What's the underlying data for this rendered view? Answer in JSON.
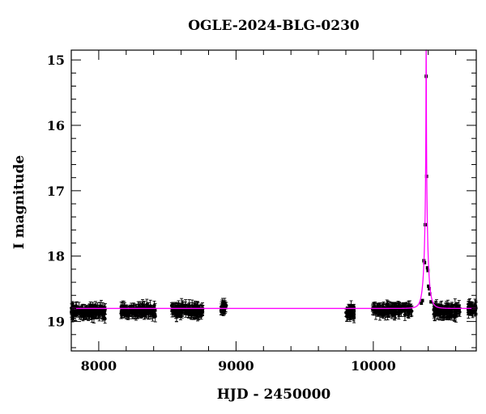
{
  "chart_data": {
    "type": "scatter",
    "title": "OGLE-2024-BLG-0230",
    "xlabel": "HJD - 2450000",
    "ylabel": "I magnitude",
    "xlim": [
      7800,
      10750
    ],
    "ylim": [
      19.45,
      14.85
    ],
    "y_inverted": true,
    "grid": false,
    "x_ticks": [
      "8000",
      "9000",
      "10000"
    ],
    "y_ticks": [
      "15",
      "16",
      "17",
      "18",
      "19"
    ],
    "colors": {
      "points": "#000000",
      "model": "#ff00ff"
    },
    "baseline_magnitude": 18.8,
    "model": {
      "type": "microlensing-fit",
      "t0": 10385,
      "tE": 28,
      "u0": 0.012,
      "baseline": 18.8
    },
    "season_groups": [
      {
        "x_range": [
          7800,
          8050
        ],
        "y_center": 18.85,
        "spread": 0.1
      },
      {
        "x_range": [
          8160,
          8420
        ],
        "y_center": 18.84,
        "spread": 0.09
      },
      {
        "x_range": [
          8530,
          8760
        ],
        "y_center": 18.83,
        "spread": 0.1
      },
      {
        "x_range": [
          8890,
          8930
        ],
        "y_center": 18.78,
        "spread": 0.07
      },
      {
        "x_range": [
          9800,
          9860
        ],
        "y_center": 18.85,
        "spread": 0.1
      },
      {
        "x_range": [
          9990,
          10280
        ],
        "y_center": 18.82,
        "spread": 0.08
      },
      {
        "x_range": [
          10440,
          10630
        ],
        "y_center": 18.84,
        "spread": 0.09
      },
      {
        "x_range": [
          10690,
          10750
        ],
        "y_center": 18.8,
        "spread": 0.07
      }
    ],
    "peak_points": [
      {
        "x": 10385,
        "y": 15.25
      },
      {
        "x": 10388,
        "y": 16.78
      },
      {
        "x": 10378,
        "y": 17.52
      },
      {
        "x": 10368,
        "y": 18.07
      },
      {
        "x": 10374,
        "y": 18.1
      },
      {
        "x": 10394,
        "y": 18.18
      },
      {
        "x": 10398,
        "y": 18.22
      },
      {
        "x": 10402,
        "y": 18.46
      },
      {
        "x": 10408,
        "y": 18.5
      },
      {
        "x": 10412,
        "y": 18.58
      },
      {
        "x": 10358,
        "y": 18.68
      },
      {
        "x": 10420,
        "y": 18.7
      },
      {
        "x": 10350,
        "y": 18.72
      }
    ]
  }
}
